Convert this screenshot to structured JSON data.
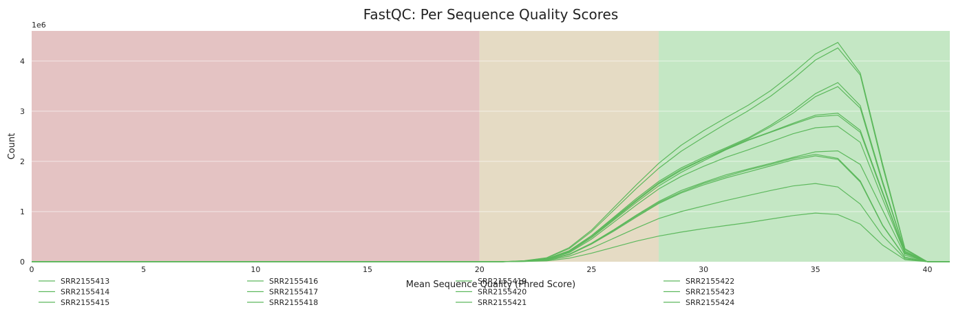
{
  "chart_data": {
    "type": "line",
    "title": "FastQC: Per Sequence Quality Scores",
    "xlabel": "Mean Sequence Quality (Phred Score)",
    "ylabel": "Count",
    "y_multiplier_label": "1e6",
    "xlim": [
      0,
      41
    ],
    "ylim": [
      0,
      4600000
    ],
    "x_ticks": [
      0,
      5,
      10,
      15,
      20,
      25,
      30,
      35,
      40
    ],
    "y_ticks": [
      0,
      1,
      2,
      3,
      4
    ],
    "y_tick_scale": 1000000,
    "grid": true,
    "legend_placement": "bottom",
    "line_color": "#5cb85c",
    "bands": [
      {
        "from": 0,
        "to": 20,
        "color": "#e4c3c3"
      },
      {
        "from": 20,
        "to": 28,
        "color": "#e5dbc4"
      },
      {
        "from": 28,
        "to": 41,
        "color": "#c4e7c4"
      }
    ],
    "x": [
      21,
      22,
      23,
      24,
      25,
      26,
      27,
      28,
      29,
      30,
      31,
      32,
      33,
      34,
      35,
      36,
      37,
      38,
      39,
      40
    ],
    "series": [
      {
        "name": "SRR2155413",
        "values": [
          0,
          20000,
          80000,
          280000,
          630000,
          1080000,
          1530000,
          1960000,
          2320000,
          2610000,
          2870000,
          3120000,
          3410000,
          3760000,
          4140000,
          4370000,
          3760000,
          1950000,
          260000,
          0
        ]
      },
      {
        "name": "SRR2155414",
        "values": [
          0,
          18000,
          75000,
          260000,
          600000,
          1030000,
          1460000,
          1860000,
          2200000,
          2480000,
          2750000,
          3010000,
          3300000,
          3640000,
          4020000,
          4260000,
          3720000,
          1900000,
          240000,
          0
        ]
      },
      {
        "name": "SRR2155415",
        "values": [
          0,
          15000,
          60000,
          220000,
          520000,
          890000,
          1260000,
          1600000,
          1870000,
          2080000,
          2270000,
          2470000,
          2720000,
          3010000,
          3350000,
          3570000,
          3110000,
          1600000,
          210000,
          0
        ]
      },
      {
        "name": "SRR2155416",
        "values": [
          0,
          14000,
          58000,
          210000,
          510000,
          870000,
          1230000,
          1570000,
          1840000,
          2050000,
          2250000,
          2450000,
          2690000,
          2960000,
          3290000,
          3490000,
          3060000,
          1560000,
          200000,
          0
        ]
      },
      {
        "name": "SRR2155417",
        "values": [
          0,
          13000,
          55000,
          200000,
          490000,
          850000,
          1210000,
          1550000,
          1820000,
          2040000,
          2240000,
          2430000,
          2590000,
          2760000,
          2920000,
          2960000,
          2620000,
          1390000,
          180000,
          0
        ]
      },
      {
        "name": "SRR2155418",
        "values": [
          0,
          12000,
          52000,
          195000,
          480000,
          830000,
          1180000,
          1510000,
          1780000,
          2010000,
          2230000,
          2420000,
          2580000,
          2740000,
          2890000,
          2920000,
          2580000,
          1360000,
          170000,
          0
        ]
      },
      {
        "name": "SRR2155419",
        "values": [
          0,
          11000,
          48000,
          180000,
          450000,
          790000,
          1130000,
          1450000,
          1700000,
          1900000,
          2080000,
          2230000,
          2390000,
          2550000,
          2670000,
          2700000,
          2380000,
          1250000,
          160000,
          0
        ]
      },
      {
        "name": "SRR2155420",
        "values": [
          0,
          10000,
          40000,
          150000,
          370000,
          640000,
          930000,
          1200000,
          1420000,
          1580000,
          1730000,
          1850000,
          1960000,
          2080000,
          2190000,
          2210000,
          1940000,
          1030000,
          130000,
          0
        ]
      },
      {
        "name": "SRR2155421",
        "values": [
          0,
          9000,
          38000,
          145000,
          360000,
          630000,
          910000,
          1180000,
          1390000,
          1560000,
          1700000,
          1830000,
          1940000,
          2060000,
          2140000,
          2060000,
          1610000,
          730000,
          90000,
          0
        ]
      },
      {
        "name": "SRR2155422",
        "values": [
          0,
          8500,
          36000,
          140000,
          350000,
          610000,
          890000,
          1160000,
          1370000,
          1530000,
          1670000,
          1790000,
          1910000,
          2030000,
          2110000,
          2040000,
          1590000,
          720000,
          85000,
          0
        ]
      },
      {
        "name": "SRR2155423",
        "values": [
          0,
          7000,
          28000,
          110000,
          270000,
          470000,
          670000,
          860000,
          1000000,
          1110000,
          1220000,
          1320000,
          1420000,
          1510000,
          1560000,
          1490000,
          1150000,
          520000,
          60000,
          0
        ]
      },
      {
        "name": "SRR2155424",
        "values": [
          0,
          4000,
          16000,
          70000,
          170000,
          290000,
          410000,
          510000,
          590000,
          660000,
          720000,
          780000,
          850000,
          920000,
          970000,
          940000,
          750000,
          330000,
          40000,
          0
        ]
      }
    ]
  }
}
